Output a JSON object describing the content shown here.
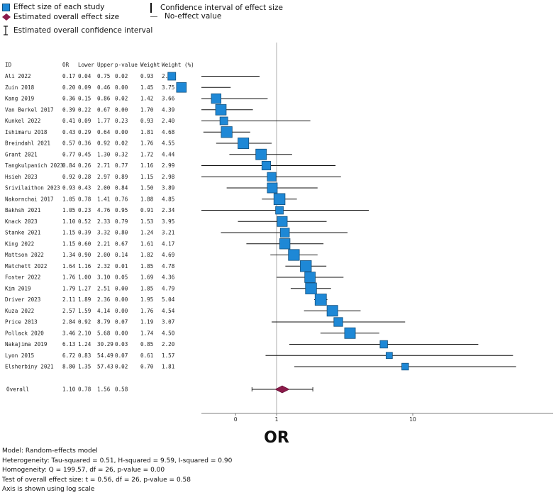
{
  "colors": {
    "box": "#1e88d6",
    "box_stroke": "#14507c",
    "diamond": "#8b1a4a",
    "line": "#111111",
    "null_line": "#9a9a9a"
  },
  "legend": {
    "study": "Effect size of each study",
    "overall": "Estimated overall effect size",
    "overall_ci": "Estimated overall confidence interval",
    "ci": "Confidence interval of effect size",
    "null": "No-effect value"
  },
  "table_headers": [
    "ID",
    "OR",
    "Lower",
    "Upper",
    "p-value",
    "Weight",
    "Weight (%)"
  ],
  "chart_data": {
    "type": "forest",
    "xlabel": "OR",
    "scale": "log",
    "null_value": 1,
    "xlim": [
      0.1,
      30
    ],
    "ticks": [
      {
        "value": 0.5,
        "label": "0"
      },
      {
        "value": 1,
        "label": "1"
      },
      {
        "value": 10,
        "label": "10"
      }
    ],
    "studies": [
      {
        "id": "Ali 2022",
        "or": "0.17",
        "lower": "0.04",
        "upper": "0.75",
        "p": "0.02",
        "w": "0.93",
        "wp": "2.39"
      },
      {
        "id": "Zuin 2018",
        "or": "0.20",
        "lower": "0.09",
        "upper": "0.46",
        "p": "0.00",
        "w": "1.45",
        "wp": "3.75"
      },
      {
        "id": "Kang 2019",
        "or": "0.36",
        "lower": "0.15",
        "upper": "0.86",
        "p": "0.02",
        "w": "1.42",
        "wp": "3.66"
      },
      {
        "id": "Van Berkel 2017",
        "or": "0.39",
        "lower": "0.22",
        "upper": "0.67",
        "p": "0.00",
        "w": "1.70",
        "wp": "4.39"
      },
      {
        "id": "Kunkel 2022",
        "or": "0.41",
        "lower": "0.09",
        "upper": "1.77",
        "p": "0.23",
        "w": "0.93",
        "wp": "2.40"
      },
      {
        "id": "Ishimaru 2018",
        "or": "0.43",
        "lower": "0.29",
        "upper": "0.64",
        "p": "0.00",
        "w": "1.81",
        "wp": "4.68"
      },
      {
        "id": "Breindahl 2021",
        "or": "0.57",
        "lower": "0.36",
        "upper": "0.92",
        "p": "0.02",
        "w": "1.76",
        "wp": "4.55"
      },
      {
        "id": "Grant 2021",
        "or": "0.77",
        "lower": "0.45",
        "upper": "1.30",
        "p": "0.32",
        "w": "1.72",
        "wp": "4.44"
      },
      {
        "id": "Tangkulpanich 2023",
        "or": "0.84",
        "lower": "0.26",
        "upper": "2.71",
        "p": "0.77",
        "w": "1.16",
        "wp": "2.99"
      },
      {
        "id": "Hsieh 2023",
        "or": "0.92",
        "lower": "0.28",
        "upper": "2.97",
        "p": "0.89",
        "w": "1.15",
        "wp": "2.98"
      },
      {
        "id": "Srivilaithon 2023",
        "or": "0.93",
        "lower": "0.43",
        "upper": "2.00",
        "p": "0.84",
        "w": "1.50",
        "wp": "3.89"
      },
      {
        "id": "Nakornchai 2017",
        "or": "1.05",
        "lower": "0.78",
        "upper": "1.41",
        "p": "0.76",
        "w": "1.88",
        "wp": "4.85"
      },
      {
        "id": "Bakhsh 2021",
        "or": "1.05",
        "lower": "0.23",
        "upper": "4.76",
        "p": "0.95",
        "w": "0.91",
        "wp": "2.34"
      },
      {
        "id": "Knack 2023",
        "or": "1.10",
        "lower": "0.52",
        "upper": "2.33",
        "p": "0.79",
        "w": "1.53",
        "wp": "3.95"
      },
      {
        "id": "Stanke 2021",
        "or": "1.15",
        "lower": "0.39",
        "upper": "3.32",
        "p": "0.80",
        "w": "1.24",
        "wp": "3.21"
      },
      {
        "id": "King 2022",
        "or": "1.15",
        "lower": "0.60",
        "upper": "2.21",
        "p": "0.67",
        "w": "1.61",
        "wp": "4.17"
      },
      {
        "id": "Mattson 2022",
        "or": "1.34",
        "lower": "0.90",
        "upper": "2.00",
        "p": "0.14",
        "w": "1.82",
        "wp": "4.69"
      },
      {
        "id": "Matchett 2022",
        "or": "1.64",
        "lower": "1.16",
        "upper": "2.32",
        "p": "0.01",
        "w": "1.85",
        "wp": "4.78"
      },
      {
        "id": "Foster 2022",
        "or": "1.76",
        "lower": "1.00",
        "upper": "3.10",
        "p": "0.05",
        "w": "1.69",
        "wp": "4.36"
      },
      {
        "id": "Kim 2019",
        "or": "1.79",
        "lower": "1.27",
        "upper": "2.51",
        "p": "0.00",
        "w": "1.85",
        "wp": "4.79"
      },
      {
        "id": "Driver 2023",
        "or": "2.11",
        "lower": "1.89",
        "upper": "2.36",
        "p": "0.00",
        "w": "1.95",
        "wp": "5.04"
      },
      {
        "id": "Kuza 2022",
        "or": "2.57",
        "lower": "1.59",
        "upper": "4.14",
        "p": "0.00",
        "w": "1.76",
        "wp": "4.54"
      },
      {
        "id": "Price 2013",
        "or": "2.84",
        "lower": "0.92",
        "upper": "8.79",
        "p": "0.07",
        "w": "1.19",
        "wp": "3.07"
      },
      {
        "id": "Pollack 2020",
        "or": "3.46",
        "lower": "2.10",
        "upper": "5.68",
        "p": "0.00",
        "w": "1.74",
        "wp": "4.50"
      },
      {
        "id": "Nakajima 2019",
        "or": "6.13",
        "lower": "1.24",
        "upper": "30.29",
        "p": "0.03",
        "w": "0.85",
        "wp": "2.20"
      },
      {
        "id": "Lyon 2015",
        "or": "6.72",
        "lower": "0.83",
        "upper": "54.49",
        "p": "0.07",
        "w": "0.61",
        "wp": "1.57"
      },
      {
        "id": "Elsherbiny 2021",
        "or": "8.80",
        "lower": "1.35",
        "upper": "57.43",
        "p": "0.02",
        "w": "0.70",
        "wp": "1.81"
      }
    ],
    "overall": {
      "id": "Overall",
      "or": "1.10",
      "lower": "0.78",
      "upper": "1.56",
      "p": "0.58"
    }
  },
  "footer": {
    "model": "Model: Random-effects model",
    "heterogeneity": "Heterogeneity: Tau-squared = 0.51, H-squared = 9.59, I-squared = 0.90",
    "homogeneity": "Homogeneity: Q = 199.57, df = 26, p-value = 0.00",
    "test": "Test of overall effect size: t = 0.56, df = 26, p-value = 0.58",
    "axis_note": "Axis is shown using log scale"
  }
}
